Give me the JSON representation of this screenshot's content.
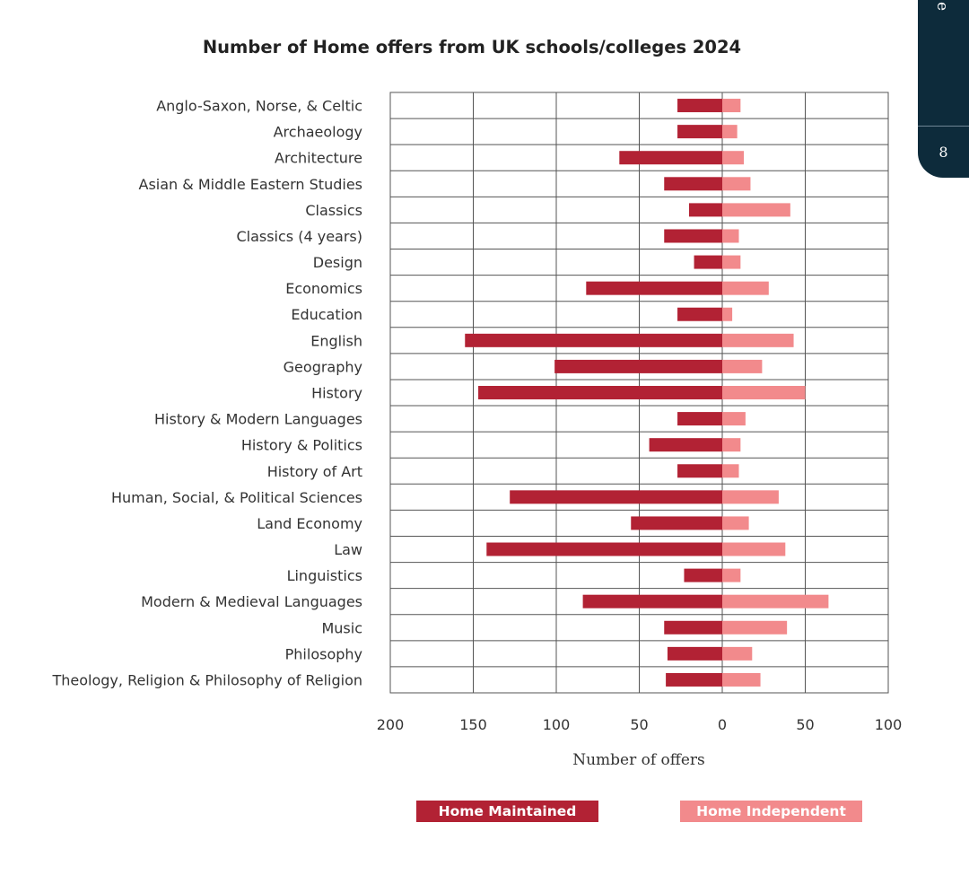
{
  "side_tab": {
    "text": "e type",
    "page_number": "8"
  },
  "chart_data": {
    "type": "bar",
    "orientation": "horizontal-diverging",
    "title": "Number of Home offers from UK schools/colleges 2024",
    "xlabel": "Number of offers",
    "xlim": [
      -200,
      100
    ],
    "x_ticks": [
      -200,
      -150,
      -100,
      -50,
      0,
      50,
      100
    ],
    "x_tick_labels": [
      "200",
      "150",
      "100",
      "50",
      "0",
      "50",
      "100"
    ],
    "grid": true,
    "legend_position": "bottom",
    "categories": [
      "Anglo-Saxon, Norse, & Celtic",
      "Archaeology",
      "Architecture",
      "Asian & Middle Eastern Studies",
      "Classics",
      "Classics (4 years)",
      "Design",
      "Economics",
      "Education",
      "English",
      "Geography",
      "History",
      "History & Modern Languages",
      "History & Politics",
      "History of Art",
      "Human, Social, & Political Sciences",
      "Land Economy",
      "Law",
      "Linguistics",
      "Modern & Medieval Languages",
      "Music",
      "Philosophy",
      "Theology, Religion & Philosophy of Religion"
    ],
    "series": [
      {
        "name": "Home Maintained",
        "color": "#b22234",
        "direction": "left",
        "values": [
          27,
          27,
          62,
          35,
          20,
          35,
          17,
          82,
          27,
          155,
          101,
          147,
          27,
          44,
          27,
          128,
          55,
          142,
          23,
          84,
          35,
          33,
          34
        ]
      },
      {
        "name": "Home Independent",
        "color": "#f28a8c",
        "direction": "right",
        "values": [
          11,
          9,
          13,
          17,
          41,
          10,
          11,
          28,
          6,
          43,
          24,
          50,
          14,
          11,
          10,
          34,
          16,
          38,
          11,
          64,
          39,
          18,
          23
        ]
      }
    ]
  }
}
